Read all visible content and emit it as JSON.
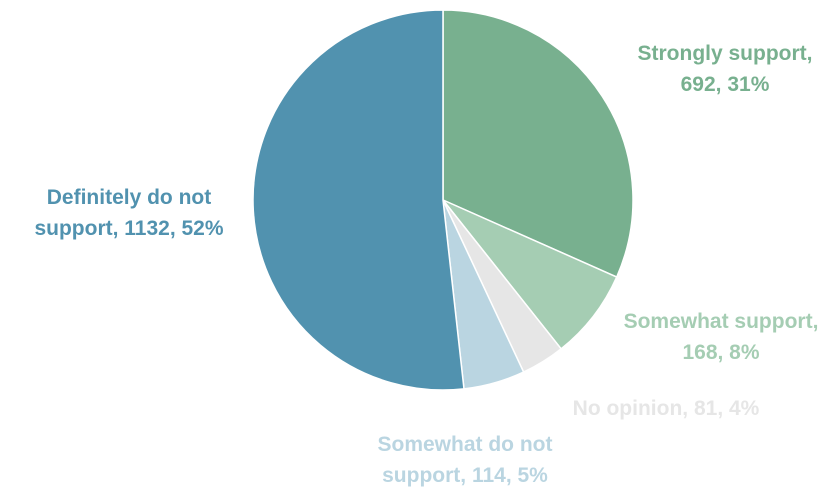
{
  "chart_data": {
    "type": "pie",
    "title": "",
    "slices": [
      {
        "label_line1": "Strongly support,",
        "label_line2": "692, 31%",
        "category": "Strongly support",
        "value": 692,
        "percent": 31,
        "color": "#78B08F"
      },
      {
        "label_line1": "Somewhat support,",
        "label_line2": "168, 8%",
        "category": "Somewhat support",
        "value": 168,
        "percent": 8,
        "color": "#A5CDB3"
      },
      {
        "label_line1": "No opinion, 81, 4%",
        "label_line2": "",
        "category": "No opinion",
        "value": 81,
        "percent": 4,
        "color": "#E6E6E6"
      },
      {
        "label_line1": "Somewhat do not",
        "label_line2": "support, 114, 5%",
        "category": "Somewhat do not support",
        "value": 114,
        "percent": 5,
        "color": "#BAD5E1"
      },
      {
        "label_line1": "Definitely do not",
        "label_line2": "support, 1132, 52%",
        "category": "Definitely do not support",
        "value": 1132,
        "percent": 52,
        "color": "#5192AF"
      }
    ],
    "start_angle_deg": 0,
    "direction": "clockwise",
    "legend": "none"
  }
}
